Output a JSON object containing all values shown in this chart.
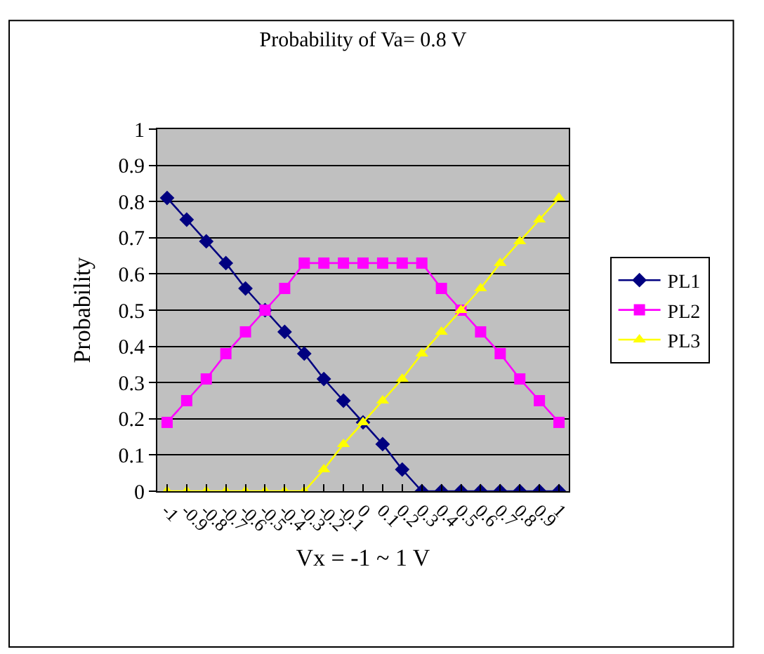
{
  "chart_data": {
    "type": "line",
    "title": "Probability of Va= 0.8 V",
    "xlabel": "Vx = -1 ~ 1 V",
    "ylabel": "Probability",
    "categories": [
      "-1",
      "-0.9",
      "-0.8",
      "-0.7",
      "-0.6",
      "-0.5",
      "-0.4",
      "-0.3",
      "-0.2",
      "-0.1",
      "0",
      "0.1",
      "0.2",
      "0.3",
      "0.4",
      "0.5",
      "0.6",
      "0.7",
      "0.8",
      "0.9",
      "1"
    ],
    "series": [
      {
        "name": "PL1",
        "color": "#000080",
        "marker": "diamond",
        "values": [
          0.81,
          0.75,
          0.69,
          0.63,
          0.56,
          0.5,
          0.44,
          0.38,
          0.31,
          0.25,
          0.19,
          0.13,
          0.06,
          0,
          0,
          0,
          0,
          0,
          0,
          0,
          0
        ]
      },
      {
        "name": "PL2",
        "color": "#ff00ff",
        "marker": "square",
        "values": [
          0.19,
          0.25,
          0.31,
          0.38,
          0.44,
          0.5,
          0.56,
          0.63,
          0.63,
          0.63,
          0.63,
          0.63,
          0.63,
          0.63,
          0.56,
          0.5,
          0.44,
          0.38,
          0.31,
          0.25,
          0.19
        ]
      },
      {
        "name": "PL3",
        "color": "#ffff00",
        "marker": "triangle",
        "values": [
          0,
          0,
          0,
          0,
          0,
          0,
          0,
          0,
          0.06,
          0.13,
          0.19,
          0.25,
          0.31,
          0.38,
          0.44,
          0.5,
          0.56,
          0.63,
          0.69,
          0.75,
          0.81
        ]
      }
    ],
    "ylim": [
      0,
      1
    ],
    "yticks": [
      0,
      0.1,
      0.2,
      0.3,
      0.4,
      0.5,
      0.6,
      0.7,
      0.8,
      0.9,
      1
    ],
    "grid": "y",
    "legend": "right",
    "line_style": "solid"
  }
}
